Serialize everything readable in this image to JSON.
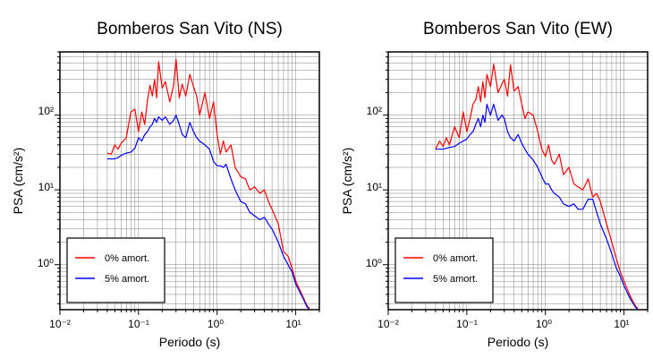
{
  "figure_type": "response-spectra",
  "colors": {
    "series_0": "#ff0000",
    "series_5": "#0000ff",
    "grid": "#808080",
    "axis": "#000000"
  },
  "chart_data": [
    {
      "type": "line",
      "title": "Bomberos San Vito (NS)",
      "xlabel": "Periodo (s)",
      "ylabel": "PSA (cm/s²)",
      "xscale": "log",
      "yscale": "log",
      "xlim": [
        0.01,
        20
      ],
      "ylim": [
        0.25,
        700
      ],
      "xtick_labels": [
        "10⁻²",
        "10⁻¹",
        "10⁰",
        "10¹"
      ],
      "ytick_labels": [
        "10⁰",
        "10¹",
        "10²"
      ],
      "grid": true,
      "legend": {
        "position": "bottom-left",
        "entries": [
          "0% amort.",
          "5% amort."
        ]
      },
      "series": [
        {
          "name": "0% amort.",
          "color": "#ff0000",
          "x": [
            0.04,
            0.045,
            0.05,
            0.055,
            0.06,
            0.07,
            0.08,
            0.09,
            0.1,
            0.11,
            0.12,
            0.13,
            0.14,
            0.15,
            0.16,
            0.17,
            0.18,
            0.2,
            0.22,
            0.25,
            0.28,
            0.3,
            0.33,
            0.36,
            0.4,
            0.45,
            0.5,
            0.55,
            0.6,
            0.7,
            0.8,
            0.9,
            1.0,
            1.1,
            1.2,
            1.3,
            1.5,
            1.7,
            2.0,
            2.3,
            2.6,
            3.0,
            3.5,
            4.0,
            4.5,
            5.0,
            6.0,
            7.0,
            8.0,
            9.0,
            10.0,
            12.0,
            14.0,
            15.0
          ],
          "y": [
            31,
            30,
            40,
            35,
            42,
            50,
            110,
            120,
            60,
            110,
            75,
            160,
            250,
            180,
            300,
            170,
            520,
            230,
            280,
            150,
            250,
            560,
            170,
            260,
            180,
            350,
            240,
            180,
            100,
            200,
            90,
            150,
            55,
            30,
            45,
            32,
            40,
            20,
            15,
            14,
            10,
            11,
            9,
            10,
            7,
            5.5,
            3.5,
            1.5,
            1.3,
            0.9,
            0.6,
            0.4,
            0.28,
            0.26
          ]
        },
        {
          "name": "5% amort.",
          "color": "#0000ff",
          "x": [
            0.04,
            0.045,
            0.05,
            0.055,
            0.06,
            0.07,
            0.08,
            0.09,
            0.1,
            0.11,
            0.12,
            0.13,
            0.14,
            0.15,
            0.16,
            0.17,
            0.18,
            0.2,
            0.22,
            0.25,
            0.28,
            0.3,
            0.33,
            0.36,
            0.4,
            0.45,
            0.5,
            0.55,
            0.6,
            0.7,
            0.8,
            0.9,
            1.0,
            1.1,
            1.2,
            1.3,
            1.5,
            1.7,
            2.0,
            2.3,
            2.6,
            3.0,
            3.5,
            4.0,
            4.5,
            5.0,
            6.0,
            7.0,
            8.0,
            9.0,
            10.0,
            12.0,
            14.0,
            15.0
          ],
          "y": [
            26,
            26,
            26,
            27,
            29,
            31,
            32,
            36,
            50,
            45,
            55,
            60,
            70,
            75,
            90,
            80,
            95,
            85,
            95,
            75,
            85,
            100,
            75,
            55,
            50,
            80,
            60,
            50,
            45,
            40,
            35,
            24,
            21,
            21,
            20,
            22,
            14,
            10,
            7,
            6.5,
            5,
            4.5,
            4,
            4.3,
            3.5,
            3,
            2,
            1.3,
            1.0,
            0.8,
            0.55,
            0.38,
            0.27,
            0.25
          ]
        }
      ]
    },
    {
      "type": "line",
      "title": "Bomberos San Vito (EW)",
      "xlabel": "Periodo (s)",
      "ylabel": "PSA (cm/s²)",
      "xscale": "log",
      "yscale": "log",
      "xlim": [
        0.01,
        20
      ],
      "ylim": [
        0.25,
        700
      ],
      "xtick_labels": [
        "10⁻²",
        "10⁻¹",
        "10⁰",
        "10¹"
      ],
      "ytick_labels": [
        "10⁰",
        "10¹",
        "10²"
      ],
      "grid": true,
      "legend": {
        "position": "bottom-left",
        "entries": [
          "0% amort.",
          "5% amort."
        ]
      },
      "series": [
        {
          "name": "0% amort.",
          "color": "#ff0000",
          "x": [
            0.04,
            0.045,
            0.05,
            0.055,
            0.06,
            0.07,
            0.08,
            0.09,
            0.1,
            0.11,
            0.12,
            0.13,
            0.14,
            0.15,
            0.16,
            0.17,
            0.18,
            0.2,
            0.22,
            0.25,
            0.28,
            0.3,
            0.33,
            0.36,
            0.4,
            0.45,
            0.5,
            0.55,
            0.6,
            0.7,
            0.8,
            0.9,
            1.0,
            1.1,
            1.2,
            1.3,
            1.5,
            1.7,
            2.0,
            2.3,
            2.6,
            3.0,
            3.5,
            4.0,
            4.5,
            5.0,
            6.0,
            7.0,
            8.0,
            9.0,
            10.0,
            12.0,
            14.0,
            15.0
          ],
          "y": [
            35,
            45,
            38,
            50,
            40,
            70,
            50,
            110,
            60,
            90,
            140,
            160,
            240,
            150,
            280,
            170,
            350,
            240,
            480,
            200,
            260,
            300,
            180,
            470,
            210,
            240,
            140,
            90,
            110,
            100,
            60,
            35,
            28,
            40,
            25,
            22,
            30,
            16,
            20,
            12,
            11,
            10,
            14,
            8,
            9,
            7,
            3.5,
            2,
            1.2,
            0.8,
            0.6,
            0.38,
            0.28,
            0.26
          ]
        },
        {
          "name": "5% amort.",
          "color": "#0000ff",
          "x": [
            0.04,
            0.045,
            0.05,
            0.055,
            0.06,
            0.07,
            0.08,
            0.09,
            0.1,
            0.11,
            0.12,
            0.13,
            0.14,
            0.15,
            0.16,
            0.17,
            0.18,
            0.2,
            0.22,
            0.25,
            0.28,
            0.3,
            0.33,
            0.36,
            0.4,
            0.45,
            0.5,
            0.55,
            0.6,
            0.7,
            0.8,
            0.9,
            1.0,
            1.1,
            1.2,
            1.3,
            1.5,
            1.7,
            2.0,
            2.3,
            2.6,
            3.0,
            3.5,
            4.0,
            4.5,
            5.0,
            6.0,
            7.0,
            8.0,
            9.0,
            10.0,
            12.0,
            14.0,
            15.0
          ],
          "y": [
            35,
            35,
            35,
            36,
            37,
            38,
            42,
            45,
            48,
            55,
            60,
            75,
            90,
            70,
            100,
            80,
            140,
            100,
            140,
            85,
            100,
            90,
            60,
            50,
            45,
            55,
            42,
            35,
            30,
            25,
            20,
            15,
            12,
            12,
            10,
            9,
            8,
            6.5,
            6,
            6.5,
            5.5,
            5.5,
            7.5,
            7.5,
            5,
            3.5,
            2.2,
            1.4,
            0.9,
            0.7,
            0.52,
            0.35,
            0.27,
            0.25
          ]
        }
      ]
    }
  ]
}
